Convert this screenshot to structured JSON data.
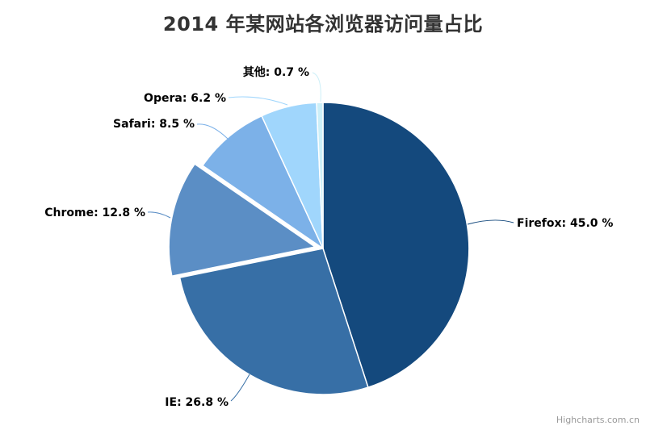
{
  "chart_data": {
    "type": "pie",
    "title": "2014 年某网站各浏览器访问量占比",
    "unit": "%",
    "direction": "clockwise",
    "start_angle_deg": 0,
    "legend": false,
    "background": "#ffffff",
    "title_color": "#333333",
    "label_color": "#000000",
    "border_color": "#ffffff",
    "series": [
      {
        "id": "firefox",
        "name": "Firefox",
        "value": 45.0,
        "label": "Firefox: 45.0 %",
        "color": "#14497D",
        "sliced": false
      },
      {
        "id": "ie",
        "name": "IE",
        "value": 26.8,
        "label": "IE: 26.8 %",
        "color": "#376FA6",
        "sliced": false
      },
      {
        "id": "chrome",
        "name": "Chrome",
        "value": 12.8,
        "label": "Chrome: 12.8 %",
        "color": "#5B8EC5",
        "sliced": true
      },
      {
        "id": "safari",
        "name": "Safari",
        "value": 8.5,
        "label": "Safari: 8.5 %",
        "color": "#7CB1E8",
        "sliced": false
      },
      {
        "id": "opera",
        "name": "Opera",
        "value": 6.2,
        "label": "Opera: 6.2 %",
        "color": "#A0D6FC",
        "sliced": false
      },
      {
        "id": "other",
        "name": "其他",
        "value": 0.7,
        "label": "其他: 0.7 %",
        "color": "#CCEFF8",
        "sliced": false
      }
    ]
  },
  "credits": {
    "label": "Highcharts.com.cn",
    "color": "#999999"
  }
}
